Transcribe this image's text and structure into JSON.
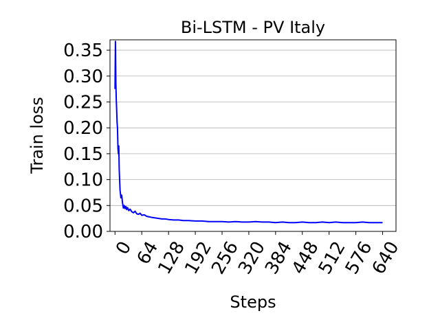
{
  "chart_data": {
    "type": "line",
    "title": "Bi-LSTM - PV Italy",
    "xlabel": "Steps",
    "ylabel": "Train loss",
    "xlim": [
      -12,
      672
    ],
    "ylim": [
      0.0,
      0.37
    ],
    "x_ticks": [
      "0",
      "64",
      "128",
      "192",
      "256",
      "320",
      "384",
      "448",
      "512",
      "576",
      "640"
    ],
    "y_ticks": [
      "0.00",
      "0.05",
      "0.10",
      "0.15",
      "0.20",
      "0.25",
      "0.30",
      "0.35"
    ],
    "grid": "horizontal",
    "line_color": "#0000ff",
    "series": [
      {
        "x": [
          0,
          1,
          2,
          3,
          4,
          5,
          6,
          7,
          8,
          9,
          10,
          12,
          14,
          16,
          18,
          20,
          22,
          24,
          26,
          28,
          30,
          33,
          36,
          40,
          44,
          48,
          52,
          56,
          60,
          64,
          70,
          76,
          82,
          88,
          96,
          104,
          112,
          120,
          128,
          140,
          152,
          164,
          176,
          192,
          208,
          224,
          240,
          256,
          272,
          288,
          304,
          320,
          336,
          352,
          368,
          384,
          400,
          416,
          432,
          448,
          464,
          480,
          496,
          512,
          528,
          544,
          560,
          576,
          592,
          608,
          624,
          640
        ],
        "values": [
          0.275,
          0.367,
          0.29,
          0.255,
          0.235,
          0.21,
          0.2,
          0.16,
          0.15,
          0.165,
          0.12,
          0.08,
          0.065,
          0.07,
          0.055,
          0.045,
          0.05,
          0.044,
          0.048,
          0.042,
          0.046,
          0.04,
          0.043,
          0.038,
          0.036,
          0.039,
          0.034,
          0.033,
          0.035,
          0.031,
          0.032,
          0.029,
          0.028,
          0.027,
          0.026,
          0.025,
          0.024,
          0.024,
          0.023,
          0.022,
          0.022,
          0.021,
          0.021,
          0.02,
          0.02,
          0.019,
          0.019,
          0.019,
          0.018,
          0.019,
          0.018,
          0.018,
          0.019,
          0.018,
          0.018,
          0.017,
          0.018,
          0.017,
          0.017,
          0.018,
          0.017,
          0.017,
          0.018,
          0.017,
          0.018,
          0.017,
          0.017,
          0.017,
          0.018,
          0.017,
          0.017,
          0.017
        ]
      }
    ]
  }
}
